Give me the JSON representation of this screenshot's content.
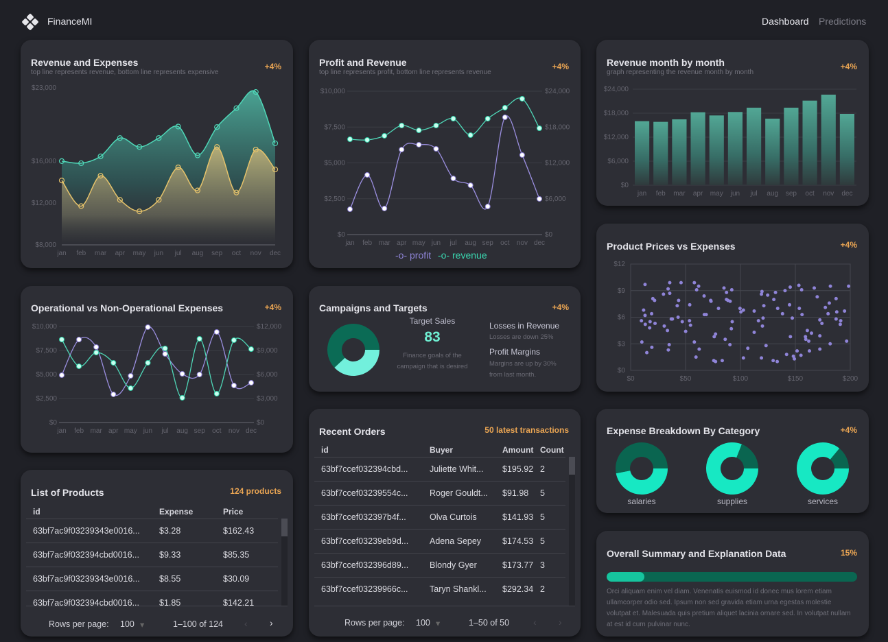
{
  "header": {
    "brand": "FinanceMI",
    "logo_icon": "diamond-logo-icon",
    "nav": [
      "Dashboard",
      "Predictions"
    ],
    "active_nav": "Dashboard"
  },
  "colors": {
    "accent_teal": "#4fd8b8",
    "expense_yellow": "#e6c36b",
    "profit_purple": "#9b8fe0",
    "badge_orange": "#eaa553",
    "donut_dark": "#0a6550",
    "donut_light": "#17e8c3"
  },
  "cards": {
    "revenue_expenses": {
      "title": "Revenue and Expenses",
      "subtitle": "top line represents revenue, bottom line represents expensive",
      "badge": "+4%"
    },
    "profit_revenue": {
      "title": "Profit and Revenue",
      "subtitle": "top line represents profit, bottom line represents revenue",
      "badge": "+4%",
      "legend": [
        "profit",
        "revenue"
      ]
    },
    "revenue_monthly": {
      "title": "Revenue month by month",
      "subtitle": "graph representing the revenue month by month",
      "badge": "+4%"
    },
    "operational": {
      "title": "Operational vs Non-Operational Expenses",
      "badge": "+4%"
    },
    "campaigns": {
      "title": "Campaigns and Targets",
      "badge": "+4%",
      "target_label": "Target Sales",
      "target_value": "83",
      "target_desc": "Finance goals of the campaign that is desired",
      "losses_title": "Losses in Revenue",
      "losses_desc": "Losses are down 25%",
      "margins_title": "Profit Margins",
      "margins_desc": "Margins are up by 30% from last month."
    },
    "scatter": {
      "title": "Product Prices vs Expenses",
      "badge": "+4%"
    },
    "expense_breakdown": {
      "title": "Expense Breakdown By Category",
      "badge": "+4%",
      "labels": [
        "salaries",
        "supplies",
        "services"
      ]
    },
    "summary": {
      "title": "Overall Summary and Explanation Data",
      "badge": "15%",
      "progress": 15,
      "text": "Orci aliquam enim vel diam. Venenatis euismod id donec mus lorem etiam ullamcorper odio sed. Ipsum non sed gravida etiam urna egestas molestie volutpat et. Malesuada quis pretium aliquet lacinia ornare sed. In volutpat nullam at est id cum pulvinar nunc."
    }
  },
  "products": {
    "title": "List of Products",
    "badge": "124 products",
    "columns": [
      "id",
      "Expense",
      "Price"
    ],
    "rows": [
      [
        "63bf7ac9f03239343e0016...",
        "$3.28",
        "$162.43"
      ],
      [
        "63bf7ac9f032394cbd0016...",
        "$9.33",
        "$85.35"
      ],
      [
        "63bf7ac9f03239343e0016...",
        "$8.55",
        "$30.09"
      ],
      [
        "63bf7ac9f032394cbd0016...",
        "$1.85",
        "$142.21"
      ]
    ],
    "rows_per_page_label": "Rows per page:",
    "rows_per_page": "100",
    "range": "1–100 of 124"
  },
  "orders": {
    "title": "Recent Orders",
    "badge": "50 latest transactions",
    "columns": [
      "id",
      "Buyer",
      "Amount",
      "Count"
    ],
    "rows": [
      [
        "63bf7ccef032394cbd...",
        "Juliette Whit...",
        "$195.92",
        "2"
      ],
      [
        "63bf7ccef03239554c...",
        "Roger Gouldt...",
        "$91.98",
        "5"
      ],
      [
        "63bf7ccef032397b4f...",
        "Olva Curtois",
        "$141.93",
        "5"
      ],
      [
        "63bf7ccef03239eb9d...",
        "Adena Sepey",
        "$174.53",
        "5"
      ],
      [
        "63bf7ccef032396d89...",
        "Blondy Gyer",
        "$173.77",
        "3"
      ],
      [
        "63bf7ccef03239966c...",
        "Taryn Shankl...",
        "$292.34",
        "2"
      ]
    ],
    "rows_per_page_label": "Rows per page:",
    "rows_per_page": "100",
    "range": "1–50 of 50"
  },
  "chart_data": [
    {
      "type": "area",
      "title": "Revenue and Expenses",
      "categories": [
        "jan",
        "feb",
        "mar",
        "apr",
        "may",
        "jun",
        "jul",
        "aug",
        "sep",
        "oct",
        "nov",
        "dec"
      ],
      "ylim": [
        8000,
        23000
      ],
      "y_ticks": [
        8000,
        12000,
        16000,
        23000
      ],
      "y_tick_labels": [
        "$8,000",
        "$12,000",
        "$16,000",
        "$23,000"
      ],
      "series": [
        {
          "values": [
            16000,
            15800,
            16450,
            18200,
            17350,
            18200,
            19300,
            16550,
            19250,
            21050,
            22600,
            17700
          ],
          "color": "#4fd8b8"
        },
        {
          "values": [
            14150,
            11700,
            14600,
            12300,
            11200,
            12300,
            15400,
            13200,
            17350,
            13000,
            17100,
            15200
          ],
          "color": "#e6c36b"
        }
      ]
    },
    {
      "type": "line",
      "title": "Profit and Revenue",
      "categories": [
        "jan",
        "feb",
        "mar",
        "apr",
        "may",
        "jun",
        "jul",
        "aug",
        "sep",
        "oct",
        "nov",
        "dec"
      ],
      "ylim_left": [
        0,
        10000
      ],
      "y_ticks_left": [
        "$0",
        "$2,500",
        "$5,000",
        "$7,500",
        "$10,000"
      ],
      "ylim_right": [
        0,
        24000
      ],
      "y_ticks_right": [
        "$0",
        "$6,000",
        "$12,000",
        "$18,000",
        "$24,000"
      ],
      "legend": "bottom",
      "grid": true,
      "series": [
        {
          "name": "profit",
          "axis": "left",
          "color": "#9b8fe0",
          "values": [
            1770,
            4160,
            1820,
            5930,
            6270,
            5980,
            3920,
            3440,
            1960,
            8180,
            5550,
            2490
          ]
        },
        {
          "name": "revenue",
          "axis": "right",
          "color": "#4fd8b8",
          "values": [
            15960,
            15850,
            16540,
            18260,
            17450,
            18260,
            19400,
            16650,
            19400,
            21240,
            22740,
            17800
          ]
        }
      ]
    },
    {
      "type": "line",
      "title": "Operational vs Non-Operational Expenses",
      "categories": [
        "jan",
        "feb",
        "mar",
        "apr",
        "may",
        "jun",
        "jul",
        "aug",
        "sep",
        "oct",
        "nov",
        "dec"
      ],
      "ylim_left": [
        0,
        10000
      ],
      "y_ticks_left": [
        "$0",
        "$2,500",
        "$5,000",
        "$7,500",
        "$10,000"
      ],
      "ylim_right": [
        0,
        12000
      ],
      "y_ticks_right": [
        "$0",
        "$3,000",
        "$6,000",
        "$9,000",
        "$12,000"
      ],
      "grid": true,
      "series": [
        {
          "axis": "left",
          "color": "#9b8fe0",
          "values": [
            4930,
            8640,
            7860,
            2930,
            4860,
            9930,
            7140,
            5070,
            5000,
            9430,
            3860,
            4140
          ]
        },
        {
          "axis": "right",
          "color": "#4fd8b8",
          "values": [
            10370,
            7030,
            8740,
            7460,
            4290,
            7460,
            9260,
            3090,
            10460,
            3600,
            10290,
            9170
          ]
        }
      ]
    },
    {
      "type": "bar",
      "title": "Revenue month by month",
      "categories": [
        "jan",
        "feb",
        "mar",
        "apr",
        "may",
        "jun",
        "jul",
        "aug",
        "sep",
        "oct",
        "nov",
        "dec"
      ],
      "ylim": [
        0,
        24000
      ],
      "y_ticks": [
        "$0",
        "$6,000",
        "$12,000",
        "$18,000",
        "$24,000"
      ],
      "grid": true,
      "values": [
        16000,
        15830,
        16460,
        18230,
        17430,
        18290,
        19370,
        16630,
        19370,
        21140,
        22630,
        17830
      ]
    },
    {
      "type": "scatter",
      "title": "Product Prices vs Expenses",
      "xlim": [
        0,
        200
      ],
      "ylim": [
        0,
        12
      ],
      "x_ticks": [
        "$0",
        "$50",
        "$100",
        "$150",
        "$200"
      ],
      "y_ticks": [
        "$0",
        "$3",
        "$6",
        "$9",
        "$12"
      ],
      "grid": true,
      "color": "#8f84d8",
      "points": [
        [
          9.8,
          5.6
        ],
        [
          10.2,
          3.2
        ],
        [
          11.8,
          6.8
        ],
        [
          13.1,
          9.7
        ],
        [
          13.1,
          6.2
        ],
        [
          13.3,
          5.2
        ],
        [
          14.7,
          2.0
        ],
        [
          17.3,
          4.8
        ],
        [
          17.7,
          5.5
        ],
        [
          19.1,
          6.4
        ],
        [
          19.3,
          2.6
        ],
        [
          20.2,
          8.1
        ],
        [
          21.8,
          7.9
        ],
        [
          22.2,
          5.3
        ],
        [
          29.9,
          8.6
        ],
        [
          30.6,
          5.0
        ],
        [
          33.5,
          4.5
        ],
        [
          34.1,
          9.2
        ],
        [
          34.3,
          2.3
        ],
        [
          35.1,
          2.9
        ],
        [
          35.6,
          9.9
        ],
        [
          35.6,
          8.7
        ],
        [
          37.0,
          5.8
        ],
        [
          38.0,
          5.8
        ],
        [
          42.4,
          7.3
        ],
        [
          43.2,
          6.0
        ],
        [
          43.7,
          7.9
        ],
        [
          45.9,
          9.9
        ],
        [
          47.0,
          5.5
        ],
        [
          50.1,
          4.4
        ],
        [
          53.6,
          5.6
        ],
        [
          53.8,
          7.4
        ],
        [
          54.5,
          5.1
        ],
        [
          58.0,
          3.2
        ],
        [
          58.0,
          9.9
        ],
        [
          59.5,
          1.5
        ],
        [
          60.1,
          9.1
        ],
        [
          61.9,
          9.5
        ],
        [
          62.4,
          2.4
        ],
        [
          66.9,
          8.4
        ],
        [
          67.1,
          6.3
        ],
        [
          68.8,
          6.3
        ],
        [
          72.9,
          7.9
        ],
        [
          73.2,
          7.8
        ],
        [
          75.7,
          1.1
        ],
        [
          76.1,
          3.8
        ],
        [
          77.3,
          1.0
        ],
        [
          77.3,
          4.1
        ],
        [
          80.0,
          7.0
        ],
        [
          83.4,
          1.1
        ],
        [
          85.0,
          9.3
        ],
        [
          86.1,
          3.5
        ],
        [
          87.3,
          8.8
        ],
        [
          87.3,
          8.0
        ],
        [
          88.6,
          7.9
        ],
        [
          90.4,
          2.9
        ],
        [
          90.6,
          7.8
        ],
        [
          91.7,
          4.7
        ],
        [
          92.1,
          9.1
        ],
        [
          92.5,
          5.5
        ],
        [
          99.6,
          7.0
        ],
        [
          100.4,
          6.6
        ],
        [
          102.7,
          6.8
        ],
        [
          102.7,
          1.4
        ],
        [
          106.7,
          2.5
        ],
        [
          112.5,
          6.7
        ],
        [
          112.5,
          4.3
        ],
        [
          116.4,
          5.6
        ],
        [
          119.1,
          8.6
        ],
        [
          119.1,
          1.4
        ],
        [
          119.6,
          8.9
        ],
        [
          120.0,
          5.0
        ],
        [
          120.6,
          5.9
        ],
        [
          121.3,
          7.3
        ],
        [
          123.3,
          2.8
        ],
        [
          124.8,
          8.5
        ],
        [
          129.8,
          1.1
        ],
        [
          130.4,
          8.0
        ],
        [
          131.9,
          8.8
        ],
        [
          133.5,
          1.0
        ],
        [
          133.9,
          7.0
        ],
        [
          138.3,
          6.4
        ],
        [
          140.6,
          9.0
        ],
        [
          142.0,
          1.8
        ],
        [
          144.7,
          7.4
        ],
        [
          145.3,
          9.4
        ],
        [
          145.5,
          3.8
        ],
        [
          147.2,
          5.9
        ],
        [
          148.2,
          1.6
        ],
        [
          149.1,
          1.3
        ],
        [
          151.6,
          2.2
        ],
        [
          153.2,
          9.6
        ],
        [
          153.6,
          7.0
        ],
        [
          155.1,
          1.7
        ],
        [
          155.7,
          9.1
        ],
        [
          156.1,
          6.3
        ],
        [
          159.2,
          3.8
        ],
        [
          159.5,
          3.5
        ],
        [
          160.9,
          4.5
        ],
        [
          162.2,
          3.3
        ],
        [
          162.8,
          2.2
        ],
        [
          164.7,
          4.2
        ],
        [
          167.2,
          9.3
        ],
        [
          169.9,
          8.3
        ],
        [
          172.3,
          5.7
        ],
        [
          172.3,
          3.9
        ],
        [
          172.3,
          2.4
        ],
        [
          174.2,
          5.3
        ],
        [
          177.3,
          7.1
        ],
        [
          179.8,
          6.4
        ],
        [
          180.9,
          7.6
        ],
        [
          181.7,
          3.0
        ],
        [
          181.9,
          9.5
        ],
        [
          187.1,
          8.1
        ],
        [
          187.1,
          5.8
        ],
        [
          187.7,
          6.6
        ],
        [
          190.9,
          5.2
        ],
        [
          191.3,
          5.6
        ],
        [
          194.8,
          6.7
        ],
        [
          196.7,
          3.3
        ],
        [
          198.5,
          9.5
        ]
      ]
    },
    {
      "type": "pie",
      "title": "Campaigns and Targets",
      "donut": true,
      "values": [
        38,
        62
      ],
      "colors": [
        "#72f0dc",
        "#0b6b55"
      ]
    },
    {
      "type": "pie",
      "label": "salaries",
      "donut": true,
      "values": [
        47,
        53
      ],
      "colors": [
        "#17e8c3",
        "#0a6550"
      ]
    },
    {
      "type": "pie",
      "label": "supplies",
      "donut": true,
      "values": [
        81,
        19
      ],
      "colors": [
        "#17e8c3",
        "#0a6550"
      ]
    },
    {
      "type": "pie",
      "label": "services",
      "donut": true,
      "values": [
        86,
        14
      ],
      "colors": [
        "#17e8c3",
        "#0a6550"
      ]
    }
  ]
}
